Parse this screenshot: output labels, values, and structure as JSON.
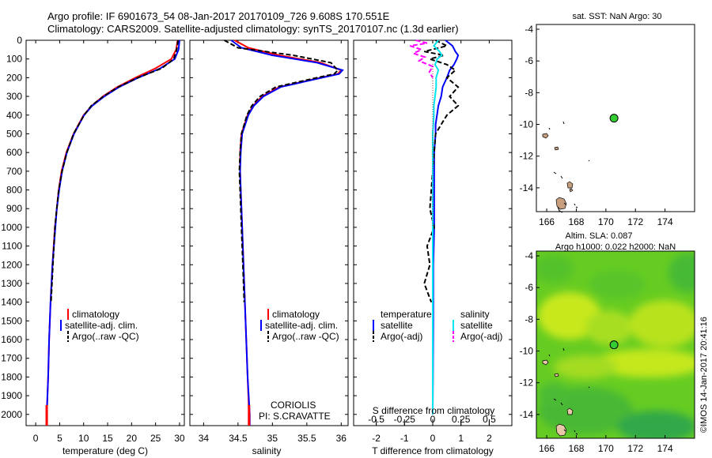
{
  "header": {
    "line1": "Argo profile: IF 6901673_54 08-Jan-2017 20170109_726 9.608S 170.551E",
    "line2": "Climatology: CARS2009. Satellite-adjusted climatology: synTS_20170107.nc (1.3d earlier)"
  },
  "colors": {
    "climatology": "#ff0000",
    "satellite": "#0000ff",
    "argo": "#000000",
    "sal_satellite": "#00e5ee",
    "sal_argo": "#ff00ff",
    "float_marker": "#33cc33",
    "land": "#c8a080"
  },
  "depth_axis": {
    "ticks": [
      0,
      100,
      200,
      300,
      400,
      500,
      600,
      700,
      800,
      900,
      1000,
      1100,
      1200,
      1300,
      1400,
      1500,
      1600,
      1700,
      1800,
      1900,
      2000
    ]
  },
  "chart_data": [
    {
      "type": "line",
      "name": "temperature-profile",
      "xlabel": "temperature (deg C)",
      "ylabel": "depth",
      "xlim": [
        -2,
        31
      ],
      "ylim": [
        2060,
        0
      ],
      "xticks": [
        0,
        5,
        10,
        15,
        20,
        25,
        30
      ],
      "legend_position": "lower-center",
      "series": [
        {
          "name": "climatology",
          "color": "#ff0000",
          "dash": "",
          "depth": [
            0,
            50,
            100,
            150,
            200,
            250,
            300,
            350,
            400,
            500,
            600,
            700,
            800,
            900,
            1000,
            1200,
            1400,
            1600,
            1800,
            2000,
            2060
          ],
          "values": [
            29.6,
            29.3,
            28.3,
            25.0,
            20.8,
            17.0,
            14.0,
            11.7,
            10.0,
            7.9,
            6.4,
            5.4,
            4.8,
            4.4,
            4.0,
            3.5,
            3.1,
            2.8,
            2.6,
            2.3,
            2.3
          ]
        },
        {
          "name": "satellite-adj. clim.",
          "color": "#0000ff",
          "dash": "",
          "depth": [
            0,
            50,
            100,
            150,
            200,
            250,
            300,
            350,
            400,
            500,
            600,
            700,
            800,
            900,
            1000,
            1200,
            1400,
            1600,
            1800,
            2000,
            2060
          ],
          "values": [
            30.0,
            29.8,
            29.0,
            26.0,
            21.4,
            17.4,
            14.3,
            11.8,
            10.1,
            8.0,
            6.5,
            5.5,
            4.9,
            4.4,
            4.1,
            3.5,
            3.1,
            2.8,
            2.6,
            2.3,
            2.3
          ]
        },
        {
          "name": "Argo(..raw -QC)",
          "color": "#000000",
          "dash": "6,3",
          "depth": [
            0,
            50,
            100,
            150,
            200,
            250,
            300,
            350,
            400,
            500,
            600,
            700,
            800,
            900,
            1000,
            1100,
            1200,
            1300,
            1400
          ],
          "values": [
            29.7,
            29.4,
            28.8,
            26.3,
            21.3,
            17.2,
            14.1,
            11.6,
            10.1,
            7.9,
            6.5,
            5.5,
            4.8,
            4.4,
            4.0,
            3.8,
            3.6,
            3.4,
            3.2
          ]
        }
      ],
      "legend": [
        "climatology",
        "satellite-adj. clim.",
        "Argo(..raw -QC)"
      ]
    },
    {
      "type": "line",
      "name": "salinity-profile",
      "xlabel": "salinity",
      "ylabel": "depth",
      "xlim": [
        33.8,
        36.1
      ],
      "ylim": [
        2060,
        0
      ],
      "xticks": [
        34,
        34.5,
        35,
        35.5,
        36
      ],
      "xticklabels": [
        "34",
        "34.5",
        "35",
        "35.5",
        "36"
      ],
      "legend_position": "lower-center",
      "series": [
        {
          "name": "climatology",
          "color": "#ff0000",
          "dash": "",
          "depth": [
            0,
            40,
            80,
            120,
            160,
            180,
            200,
            250,
            300,
            350,
            400,
            500,
            600,
            700,
            800,
            1000,
            1200,
            1500,
            1800,
            2000,
            2060
          ],
          "values": [
            34.45,
            34.65,
            35.1,
            35.7,
            36.0,
            35.95,
            35.7,
            35.1,
            34.85,
            34.72,
            34.64,
            34.55,
            34.53,
            34.53,
            34.54,
            34.56,
            34.58,
            34.61,
            34.64,
            34.66,
            34.66
          ]
        },
        {
          "name": "satellite-adj. clim.",
          "color": "#0000ff",
          "dash": "",
          "depth": [
            0,
            40,
            80,
            120,
            160,
            180,
            200,
            250,
            300,
            350,
            400,
            500,
            600,
            700,
            800,
            1000,
            1200,
            1500,
            1800,
            2000,
            2060
          ],
          "values": [
            34.4,
            34.55,
            35.0,
            35.65,
            36.02,
            35.97,
            35.72,
            35.12,
            34.87,
            34.73,
            34.65,
            34.56,
            34.54,
            34.53,
            34.54,
            34.56,
            34.58,
            34.61,
            34.64,
            34.67,
            34.67
          ]
        },
        {
          "name": "Argo(..raw -QC)",
          "color": "#000000",
          "dash": "6,3",
          "depth": [
            0,
            40,
            80,
            120,
            160,
            180,
            200,
            250,
            300,
            350,
            400,
            500,
            600,
            700,
            800,
            1000,
            1200,
            1400
          ],
          "values": [
            34.3,
            34.5,
            35.3,
            35.85,
            35.95,
            35.9,
            35.65,
            35.05,
            34.82,
            34.7,
            34.63,
            34.55,
            34.53,
            34.52,
            34.53,
            34.55,
            34.57,
            34.59
          ]
        }
      ],
      "legend": [
        "climatology",
        "satellite-adj. clim.",
        "Argo(..raw -QC)"
      ],
      "annotation": [
        "CORIOLIS",
        "PI: S.CRAVATTE"
      ]
    },
    {
      "type": "line",
      "name": "difference-profile",
      "xlabel": "T difference from climatology",
      "xlabel_top": "S difference from climatology",
      "xlim": [
        -2.8,
        2.8
      ],
      "ylim": [
        2060,
        0
      ],
      "xticks": [
        -2,
        -1,
        0,
        1,
        2
      ],
      "s_ticks": [
        -0.5,
        -0.25,
        0,
        0.25,
        0.5
      ],
      "s_ticklabels": [
        "-0.5",
        "-0.25",
        "0",
        "0.25",
        "0.5"
      ],
      "s_scale": 4,
      "legend_position": "lower-center",
      "series": [
        {
          "name": "temperature satellite",
          "color": "#0000ff",
          "dash": "",
          "quantity": "T",
          "depth": [
            0,
            30,
            60,
            80,
            100,
            130,
            160,
            200,
            250,
            300,
            350,
            400,
            450,
            500,
            600,
            800,
            1000,
            1200,
            1500,
            2000
          ],
          "values": [
            0.45,
            0.7,
            0.8,
            0.9,
            0.85,
            0.75,
            0.6,
            0.5,
            0.35,
            0.3,
            0.2,
            0.15,
            0.1,
            0.1,
            0.05,
            0.05,
            0.05,
            0.02,
            0.02,
            0.0
          ]
        },
        {
          "name": "temperature Argo(-adj)",
          "color": "#000000",
          "dash": "6,3",
          "quantity": "T",
          "depth": [
            0,
            30,
            60,
            80,
            100,
            130,
            160,
            200,
            250,
            300,
            350,
            400,
            450,
            500,
            600,
            700,
            800,
            900,
            1000,
            1100,
            1200,
            1300,
            1400
          ],
          "values": [
            0.1,
            0.5,
            -0.3,
            0.4,
            -0.1,
            0.5,
            0.8,
            0.5,
            0.9,
            0.6,
            0.9,
            0.5,
            0.3,
            0.1,
            0.05,
            0.0,
            -0.05,
            -0.1,
            0.05,
            -0.2,
            -0.1,
            -0.3,
            -0.05
          ]
        },
        {
          "name": "salinity satellite",
          "color": "#00e5ee",
          "dash": "",
          "quantity": "S",
          "depth": [
            0,
            30,
            60,
            80,
            100,
            130,
            160,
            200,
            250,
            300,
            350,
            400,
            500,
            600,
            800,
            1000,
            1200,
            1500,
            2000
          ],
          "values": [
            0.05,
            0.01,
            0.06,
            0.08,
            0.04,
            0.02,
            0.05,
            0.03,
            0.03,
            0.02,
            0.01,
            0.01,
            0.0,
            0.0,
            0.0,
            0.0,
            0.0,
            0.0,
            0.0
          ]
        },
        {
          "name": "salinity Argo(-adj)",
          "color": "#ff00ff",
          "dash": "6,3",
          "quantity": "S",
          "depth": [
            0,
            15,
            30,
            50,
            70,
            90,
            110,
            140,
            170,
            200
          ],
          "values": [
            -0.15,
            -0.05,
            -0.2,
            -0.1,
            -0.17,
            -0.07,
            -0.12,
            0.0,
            -0.03,
            0.0
          ]
        }
      ],
      "legend_headers": [
        "temperature",
        "salinity"
      ],
      "legend": [
        "satellite",
        "Argo(-adj)",
        "satellite",
        "Argo(-adj)"
      ]
    },
    {
      "type": "map",
      "name": "sst-map",
      "title": "sat. SST: NaN  Argo: 30",
      "xlim": [
        165.3,
        176
      ],
      "ylim": [
        -15.5,
        -3.7
      ],
      "xticks": [
        166,
        168,
        170,
        172,
        174
      ],
      "yticks": [
        -4,
        -6,
        -8,
        -10,
        -12,
        -14
      ],
      "float_position": [
        170.55,
        -9.608
      ]
    },
    {
      "type": "map",
      "name": "sla-map",
      "title_line1": "Altim. SLA: 0.087",
      "title_line2": "Argo h1000: 0.022  h2000: NaN",
      "xlim": [
        165.3,
        176
      ],
      "ylim": [
        -15.5,
        -3.7
      ],
      "xticks": [
        166,
        168,
        170,
        172,
        174
      ],
      "yticks": [
        -4,
        -6,
        -8,
        -10,
        -12,
        -14
      ],
      "float_position": [
        170.55,
        -9.608
      ]
    }
  ],
  "watermark": "©IMOS 14-Jan-2017 20:41:16"
}
